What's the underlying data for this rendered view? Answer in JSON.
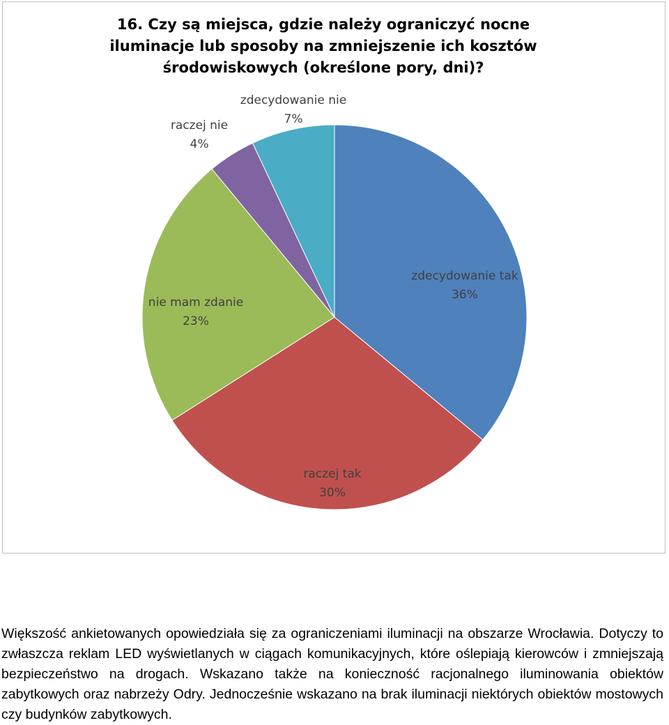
{
  "chart_data": {
    "type": "pie",
    "title": "16. Czy są miejsca, gdzie należy ograniczyć nocne iluminacje lub sposoby na zmniejszenie ich kosztów środowiskowych (określone pory, dni)?",
    "slices": [
      {
        "label": "zdecydowanie tak",
        "value": 36,
        "display": "36%",
        "color": "#4f81bd"
      },
      {
        "label": "raczej tak",
        "value": 30,
        "display": "30%",
        "color": "#c0504d"
      },
      {
        "label": "nie mam zdanie",
        "value": 23,
        "display": "23%",
        "color": "#9bbb59"
      },
      {
        "label": "raczej nie",
        "value": 4,
        "display": "4%",
        "color": "#8064a2"
      },
      {
        "label": "zdecydowanie nie",
        "value": 7,
        "display": "7%",
        "color": "#4bacc6"
      }
    ]
  },
  "caption": "Większość ankietowanych opowiedziała się za ograniczeniami iluminacji na obszarze Wrocławia. Dotyczy to zwłaszcza reklam LED wyświetlanych w ciągach komunikacyjnych, które oślepiają kierowców i zmniejszają bezpieczeństwo na drogach. Wskazano także na konieczność racjonalnego iluminowania obiektów zabytkowych oraz nabrzeży Odry. Jednocześnie wskazano na brak iluminacji niektórych obiektów mostowych czy budynków zabytkowych."
}
